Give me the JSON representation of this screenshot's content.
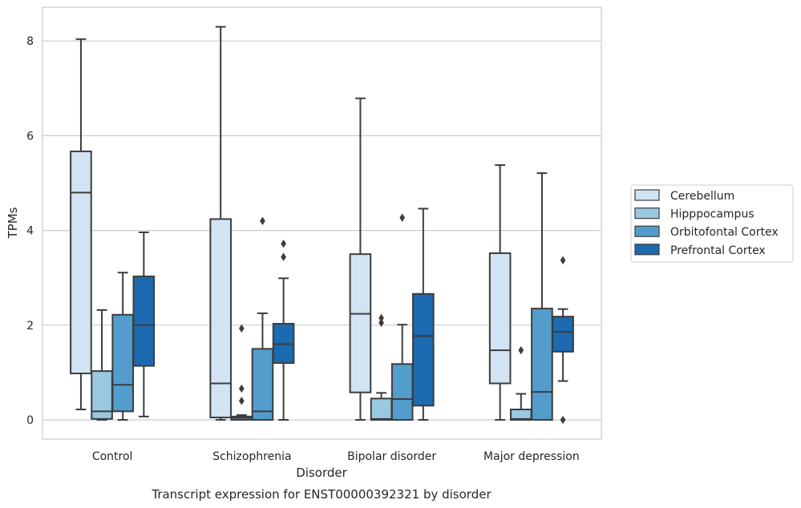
{
  "caption": "Transcript expression for ENST00000392321 by disorder",
  "chart_data": {
    "type": "boxplot",
    "xlabel": "Disorder",
    "ylabel": "TPMs",
    "categories": [
      "Control",
      "Schizophrenia",
      "Bipolar disorder",
      "Major depression"
    ],
    "ylim": [
      -0.4,
      8.7
    ],
    "yticks": [
      "0",
      "2",
      "4",
      "6",
      "8"
    ],
    "grid": "horizontal",
    "legend_position": "right",
    "series": [
      {
        "name": "Cerebellum",
        "color": "#d2e3f3",
        "boxes": [
          {
            "whislo": 0.22,
            "q1": 0.98,
            "med": 4.8,
            "q3": 5.67,
            "whishi": 8.04,
            "fliers": []
          },
          {
            "whislo": 0.0,
            "q1": 0.05,
            "med": 0.77,
            "q3": 4.24,
            "whishi": 8.3,
            "fliers": []
          },
          {
            "whislo": 0.0,
            "q1": 0.58,
            "med": 2.24,
            "q3": 3.5,
            "whishi": 6.79,
            "fliers": []
          },
          {
            "whislo": 0.0,
            "q1": 0.77,
            "med": 1.47,
            "q3": 3.52,
            "whishi": 5.38,
            "fliers": []
          }
        ]
      },
      {
        "name": "Hipppocampus",
        "color": "#9ac8e0",
        "boxes": [
          {
            "whislo": 0.0,
            "q1": 0.02,
            "med": 0.18,
            "q3": 1.03,
            "whishi": 2.32,
            "fliers": []
          },
          {
            "whislo": 0.0,
            "q1": 0.0,
            "med": 0.04,
            "q3": 0.07,
            "whishi": 0.1,
            "fliers": [
              0.4,
              0.66,
              1.93
            ]
          },
          {
            "whislo": 0.0,
            "q1": 0.0,
            "med": 0.02,
            "q3": 0.45,
            "whishi": 0.57,
            "fliers": [
              2.05,
              2.15
            ]
          },
          {
            "whislo": 0.0,
            "q1": 0.0,
            "med": 0.02,
            "q3": 0.22,
            "whishi": 0.55,
            "fliers": [
              1.47
            ]
          }
        ]
      },
      {
        "name": "Orbitofontal Cortex",
        "color": "#529dcc",
        "boxes": [
          {
            "whislo": 0.0,
            "q1": 0.18,
            "med": 0.74,
            "q3": 2.22,
            "whishi": 3.11,
            "fliers": []
          },
          {
            "whislo": 0.0,
            "q1": 0.0,
            "med": 0.18,
            "q3": 1.5,
            "whishi": 2.25,
            "fliers": [
              4.2
            ]
          },
          {
            "whislo": 0.0,
            "q1": 0.0,
            "med": 0.44,
            "q3": 1.18,
            "whishi": 2.01,
            "fliers": [
              4.27
            ]
          },
          {
            "whislo": 0.0,
            "q1": 0.0,
            "med": 0.59,
            "q3": 2.35,
            "whishi": 5.21,
            "fliers": []
          }
        ]
      },
      {
        "name": "Prefrontal Cortex",
        "color": "#1c6aaf",
        "boxes": [
          {
            "whislo": 0.07,
            "q1": 1.14,
            "med": 2.0,
            "q3": 3.03,
            "whishi": 3.96,
            "fliers": []
          },
          {
            "whislo": 0.0,
            "q1": 1.2,
            "med": 1.6,
            "q3": 2.03,
            "whishi": 2.99,
            "fliers": [
              3.44,
              3.72
            ]
          },
          {
            "whislo": 0.0,
            "q1": 0.3,
            "med": 1.77,
            "q3": 2.66,
            "whishi": 4.46,
            "fliers": []
          },
          {
            "whislo": 0.82,
            "q1": 1.44,
            "med": 1.86,
            "q3": 2.18,
            "whishi": 2.34,
            "fliers": [
              0.0,
              3.37
            ]
          }
        ]
      }
    ]
  }
}
